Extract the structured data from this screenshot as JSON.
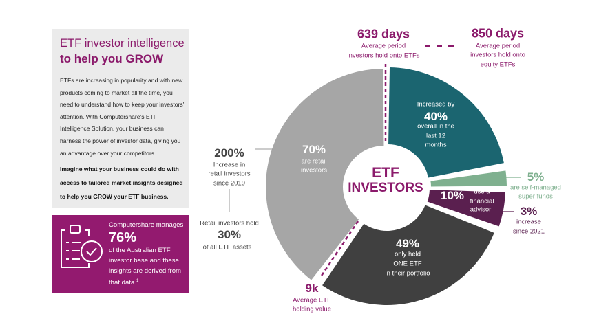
{
  "intro": {
    "title_line1": "ETF investor intelligence",
    "title_line2": "to help you GROW",
    "body": "ETFs are increasing in popularity and with new products coming to market all the time, you need to understand how to keep your investors' attention. With Computershare's ETF Intelligence Solution, your business can harness the power of investor data, giving you an advantage over your competitors.",
    "body_bold": "Imagine what your business could do with access to tailored market insights designed to help you GROW your ETF business."
  },
  "stat_box": {
    "icon": "clipboard-checklist-icon",
    "line1": "Computershare manages",
    "value": "76%",
    "line2": "of the Australian ETF investor base and these insights are derived from that data.",
    "footnote": "1"
  },
  "center": {
    "line1": "ETF",
    "line2": "INVESTORS"
  },
  "colors": {
    "accent": "#8b1a6b",
    "teal": "#1b6570",
    "light_gray": "#a6a6a6",
    "dark_gray": "#404040",
    "plum": "#5a1f4f",
    "green": "#7fb08f"
  },
  "segments": {
    "teal": {
      "pre": "Increased by",
      "value": "40%",
      "l1": "overall in the",
      "l2": "last 12",
      "l3": "months"
    },
    "retail": {
      "value": "70%",
      "l1": "are retail",
      "l2": "investors"
    },
    "one_etf": {
      "value": "49%",
      "l1": "only held",
      "l2": "ONE ETF",
      "l3": "in their portfolio"
    },
    "advisor": {
      "value": "10%",
      "l1": "use a",
      "l2": "financial",
      "l3": "advisor"
    },
    "smsf": {
      "value": "5%",
      "l1": "are self-managed",
      "l2": "super funds"
    }
  },
  "callouts": {
    "days_etf": {
      "value": "639 days",
      "l1": "Average  period",
      "l2": "investors hold onto ETFs"
    },
    "days_equity": {
      "value": "850 days",
      "l1": "Average  period",
      "l2": "investors hold onto",
      "l3": "equity ETFs"
    },
    "retail_growth": {
      "value": "200%",
      "l1": "Increase in",
      "l2": "retail investors",
      "l3": "since 2019"
    },
    "retail_assets": {
      "pre": "Retail investors hold",
      "value": "30%",
      "l1": "of all ETF assets"
    },
    "holding": {
      "value": "9k",
      "l1": "Average  ETF",
      "l2": "holding value"
    },
    "advisor_growth": {
      "value": "3%",
      "l1": "increase",
      "l2": "since 2021"
    }
  }
}
